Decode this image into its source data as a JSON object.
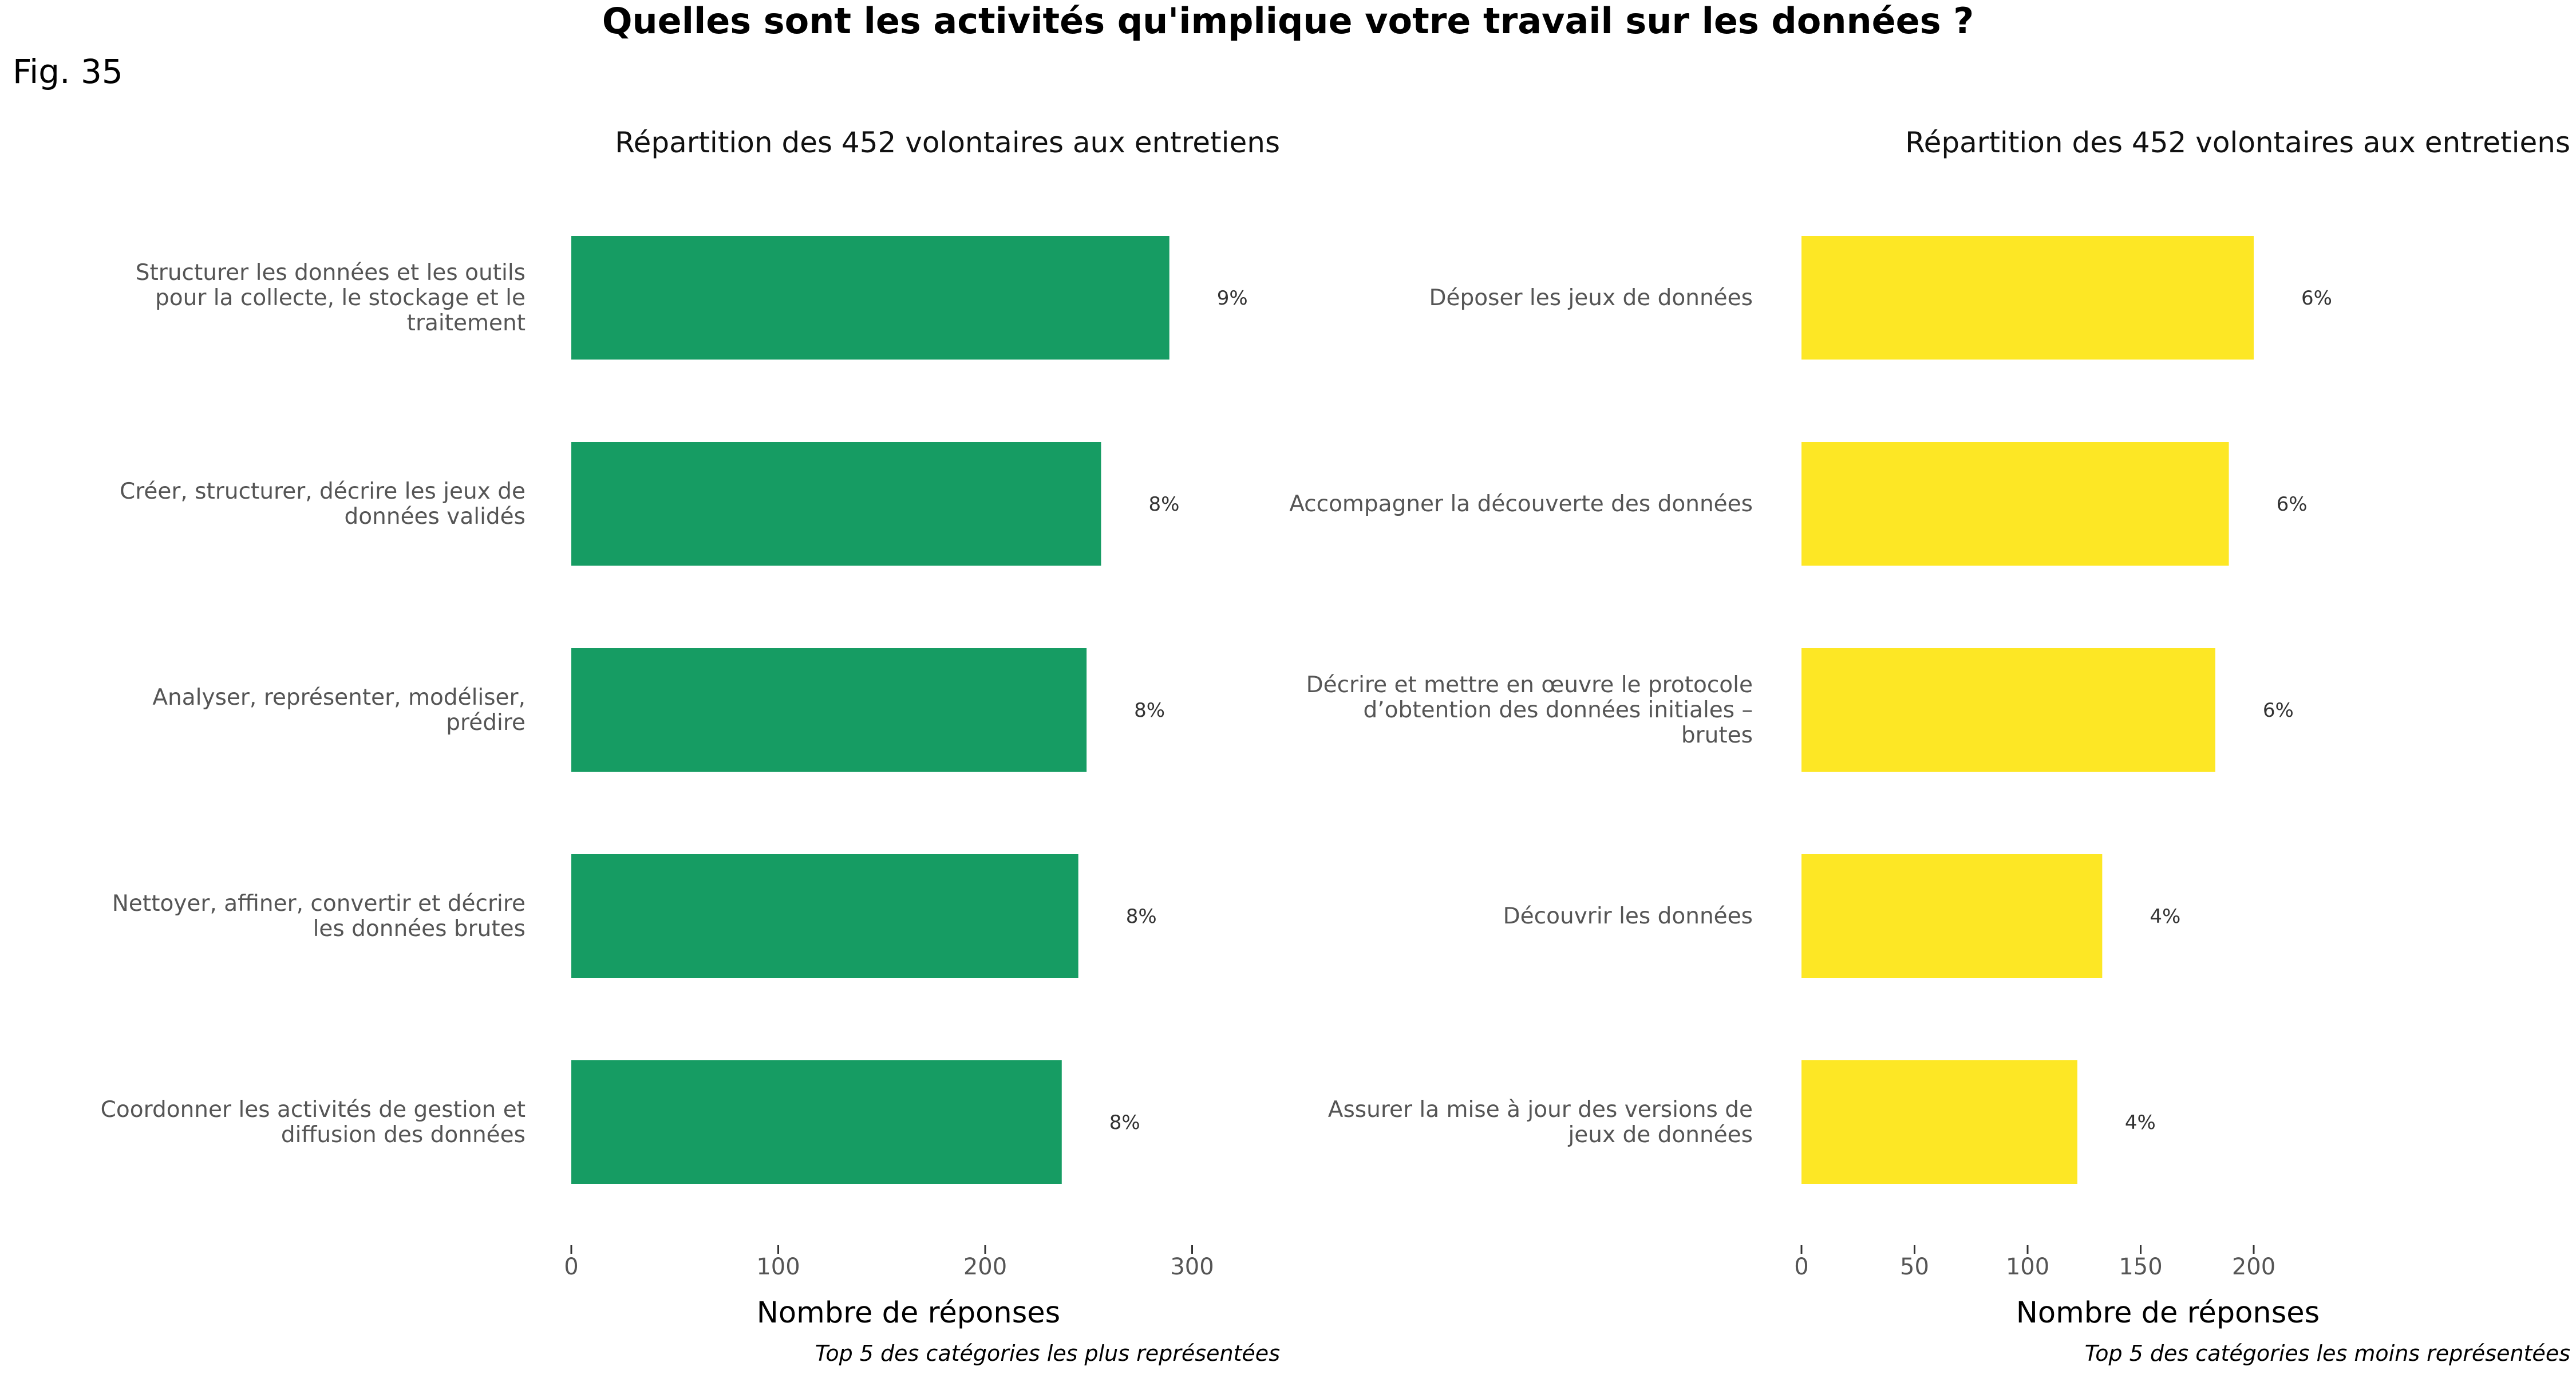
{
  "figure": {
    "title": "Quelles sont les activités qu'implique votre travail sur les données ?",
    "fig_label": "Fig. 35"
  },
  "chart_data": [
    {
      "type": "bar",
      "orientation": "horizontal",
      "title": "Répartition des 452 volontaires aux entretiens",
      "xlabel": "Nombre de réponses",
      "caption": "Top 5 des catégories les plus représentées",
      "color": "#169C63",
      "xlim": [
        0,
        330
      ],
      "xticks": [
        0,
        100,
        200,
        300
      ],
      "categories": [
        "Structurer les données et les outils pour la collecte, le stockage et le traitement",
        "Créer, structurer, décrire les jeux de données validés",
        "Analyser, représenter, modéliser, prédire",
        "Nettoyer, affiner, convertir et décrire les données brutes",
        "Coordonner les activités de gestion et diffusion des données"
      ],
      "category_lines": [
        [
          "Structurer les données et les outils",
          "pour la collecte, le stockage et le",
          "traitement"
        ],
        [
          "Créer, structurer, décrire les jeux de",
          "données validés"
        ],
        [
          "Analyser, représenter, modéliser,",
          "prédire"
        ],
        [
          "Nettoyer, affiner, convertir et décrire",
          "les données brutes"
        ],
        [
          "Coordonner les activités de gestion et",
          "diffusion des données"
        ]
      ],
      "values": [
        289,
        256,
        249,
        245,
        237
      ],
      "value_labels": [
        "9%",
        "8%",
        "8%",
        "8%",
        "8%"
      ]
    },
    {
      "type": "bar",
      "orientation": "horizontal",
      "title": "Répartition des 452 volontaires aux entretiens",
      "xlabel": "Nombre de réponses",
      "caption": "Top 5 des catégories les moins représentées",
      "color": "#FDE725",
      "xlim": [
        0,
        225
      ],
      "xticks": [
        0,
        50,
        100,
        150,
        200
      ],
      "categories": [
        "Déposer les jeux de données",
        "Accompagner la découverte des données",
        "Décrire et mettre en œuvre le protocole d’obtention des données initiales – brutes",
        "Découvrir les données",
        "Assurer la mise à jour des versions de jeux de données"
      ],
      "category_lines": [
        [
          "Déposer les jeux de données"
        ],
        [
          "Accompagner la découverte des données"
        ],
        [
          "Décrire et mettre en œuvre le protocole",
          "d’obtention des données initiales –",
          "brutes"
        ],
        [
          "Découvrir les données"
        ],
        [
          "Assurer la mise à jour des versions de",
          "jeux de données"
        ]
      ],
      "values": [
        200,
        189,
        183,
        133,
        122
      ],
      "value_labels": [
        "6%",
        "6%",
        "6%",
        "4%",
        "4%"
      ]
    }
  ]
}
